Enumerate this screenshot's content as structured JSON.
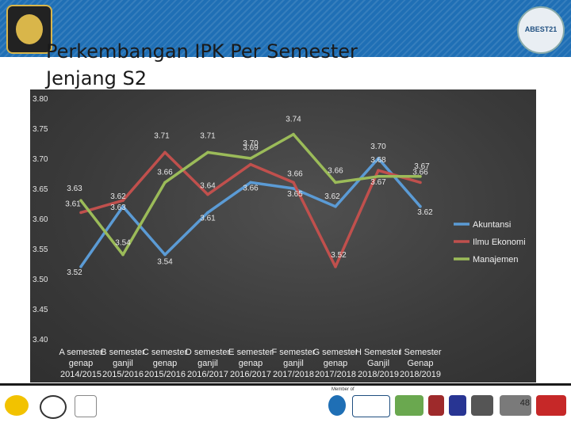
{
  "slide": {
    "title_line1": "Perkembangan IPK Per Semester",
    "title_line2": "Jenjang S2",
    "logo_right_text": "ABEST21",
    "footer_member_label": "Member of",
    "page_number": "48"
  },
  "colors": {
    "banner": "#1f6fb5",
    "panel": "#3a3a3a",
    "akuntansi": "#5b9bd5",
    "ilmu_ekonomi": "#c0504d",
    "manajemen": "#9bbb59"
  },
  "chart_data": {
    "type": "line",
    "ylim": [
      3.4,
      3.8
    ],
    "yticks": [
      "3.40",
      "3.45",
      "3.50",
      "3.55",
      "3.60",
      "3.65",
      "3.70",
      "3.75",
      "3.80"
    ],
    "categories": [
      [
        "A semester",
        "genap",
        "2014/2015"
      ],
      [
        "B semester",
        "ganjil",
        "2015/2016"
      ],
      [
        "C semester",
        "genap",
        "2015/2016"
      ],
      [
        "D semester",
        "ganjil",
        "2016/2017"
      ],
      [
        "E semester",
        "genap",
        "2016/2017"
      ],
      [
        "F semester",
        "ganjil",
        "2017/2018"
      ],
      [
        "G semester",
        "genap",
        "2017/2018"
      ],
      [
        "H Semester",
        "Ganjil",
        "2018/2019"
      ],
      [
        "I Semester",
        "Genap",
        "2018/2019"
      ]
    ],
    "legend_position": "right",
    "series": [
      {
        "name": "Akuntansi",
        "color": "#5b9bd5",
        "values": [
          3.52,
          3.62,
          3.54,
          3.61,
          3.66,
          3.65,
          3.62,
          3.7,
          3.62
        ],
        "labels": [
          "3.52",
          "3.62",
          "3.54",
          "3.61",
          "3.66",
          "3.65",
          "3.62",
          "3.70",
          "3.62"
        ]
      },
      {
        "name": "Ilmu Ekonomi",
        "color": "#c0504d",
        "values": [
          3.61,
          3.63,
          3.71,
          3.64,
          3.69,
          3.66,
          3.52,
          3.68,
          3.66
        ],
        "labels": [
          "3.61",
          "3.63",
          "3.71",
          "3.64",
          "3.69",
          "3.66",
          "3.52",
          "3.68",
          "3.66"
        ]
      },
      {
        "name": "Manajemen",
        "color": "#9bbb59",
        "values": [
          3.63,
          3.54,
          3.66,
          3.71,
          3.7,
          3.74,
          3.66,
          3.67,
          3.67
        ],
        "labels": [
          "3.63",
          "3.54",
          "3.66",
          "3.71",
          "3.70",
          "3.74",
          "3.66",
          "3.67",
          "3.67"
        ]
      }
    ]
  }
}
